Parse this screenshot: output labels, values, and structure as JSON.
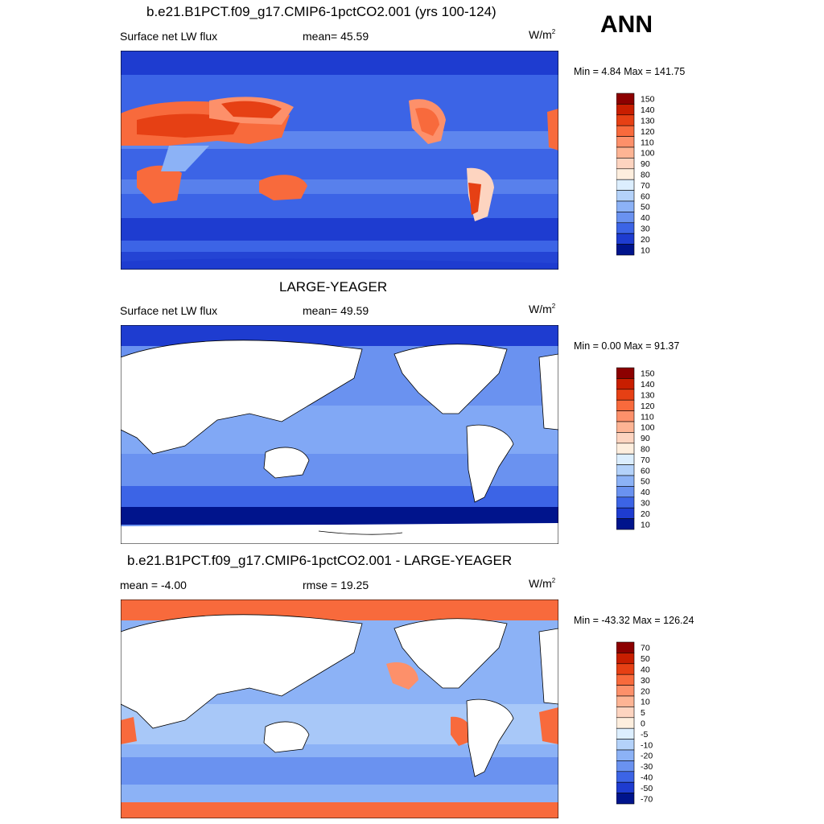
{
  "season": "ANN",
  "panels": [
    {
      "title": "b.e21.B1PCT.f09_g17.CMIP6-1pctCO2.001 (yrs 100-124)",
      "left_label": "Surface net LW flux",
      "center_label": "mean=  45.59",
      "units_base": "W/m",
      "units_exp": "2",
      "minmax": "Min =   4.84 Max = 141.75"
    },
    {
      "title": "LARGE-YEAGER",
      "left_label": "Surface net LW flux",
      "center_label": "mean=  49.59",
      "units_base": "W/m",
      "units_exp": "2",
      "minmax": "Min =   0.00 Max =  91.37"
    },
    {
      "title": "b.e21.B1PCT.f09_g17.CMIP6-1pctCO2.001 - LARGE-YEAGER",
      "left_label": "mean =  -4.00",
      "center_label": "rmse =  19.25",
      "units_base": "W/m",
      "units_exp": "2",
      "minmax": "Min = -43.32 Max = 126.24"
    }
  ],
  "chart_data": [
    {
      "type": "heatmap",
      "title": "b.e21.B1PCT.f09_g17.CMIP6-1pctCO2.001 (yrs 100-124)",
      "variable": "Surface net LW flux",
      "units": "W/m2",
      "mean": 45.59,
      "min": 4.84,
      "max": 141.75,
      "colorbar_levels": [
        "150",
        "140",
        "130",
        "120",
        "110",
        "100",
        "90",
        "80",
        "70",
        "60",
        "50",
        "40",
        "30",
        "20",
        "10"
      ],
      "colorbar_colors": [
        "#8c0000",
        "#c81e00",
        "#e64014",
        "#f86a3c",
        "#fd906a",
        "#fdb494",
        "#fdd4c0",
        "#fdeede",
        "#dceefe",
        "#b4d2fa",
        "#8cb2f6",
        "#6a92f0",
        "#3c64e6",
        "#1e3cd0",
        "#00148c"
      ]
    },
    {
      "type": "heatmap",
      "title": "LARGE-YEAGER",
      "variable": "Surface net LW flux",
      "units": "W/m2",
      "mean": 49.59,
      "min": 0.0,
      "max": 91.37,
      "colorbar_levels": [
        "150",
        "140",
        "130",
        "120",
        "110",
        "100",
        "90",
        "80",
        "70",
        "60",
        "50",
        "40",
        "30",
        "20",
        "10"
      ],
      "colorbar_colors": [
        "#8c0000",
        "#c81e00",
        "#e64014",
        "#f86a3c",
        "#fd906a",
        "#fdb494",
        "#fdd4c0",
        "#fdeede",
        "#dceefe",
        "#b4d2fa",
        "#8cb2f6",
        "#6a92f0",
        "#3c64e6",
        "#1e3cd0",
        "#00148c"
      ]
    },
    {
      "type": "heatmap",
      "title": "b.e21.B1PCT.f09_g17.CMIP6-1pctCO2.001 - LARGE-YEAGER",
      "mean": -4.0,
      "rmse": 19.25,
      "units": "W/m2",
      "min": -43.32,
      "max": 126.24,
      "colorbar_levels": [
        "70",
        "50",
        "40",
        "30",
        "20",
        "10",
        "5",
        "0",
        "-5",
        "-10",
        "-20",
        "-30",
        "-40",
        "-50",
        "-70"
      ],
      "colorbar_colors": [
        "#8c0000",
        "#c81e00",
        "#e64014",
        "#f86a3c",
        "#fd906a",
        "#fdb494",
        "#fdd4c0",
        "#fdeede",
        "#dceefe",
        "#b4d2fa",
        "#8cb2f6",
        "#6a92f0",
        "#3c64e6",
        "#1e3cd0",
        "#00148c"
      ]
    }
  ]
}
